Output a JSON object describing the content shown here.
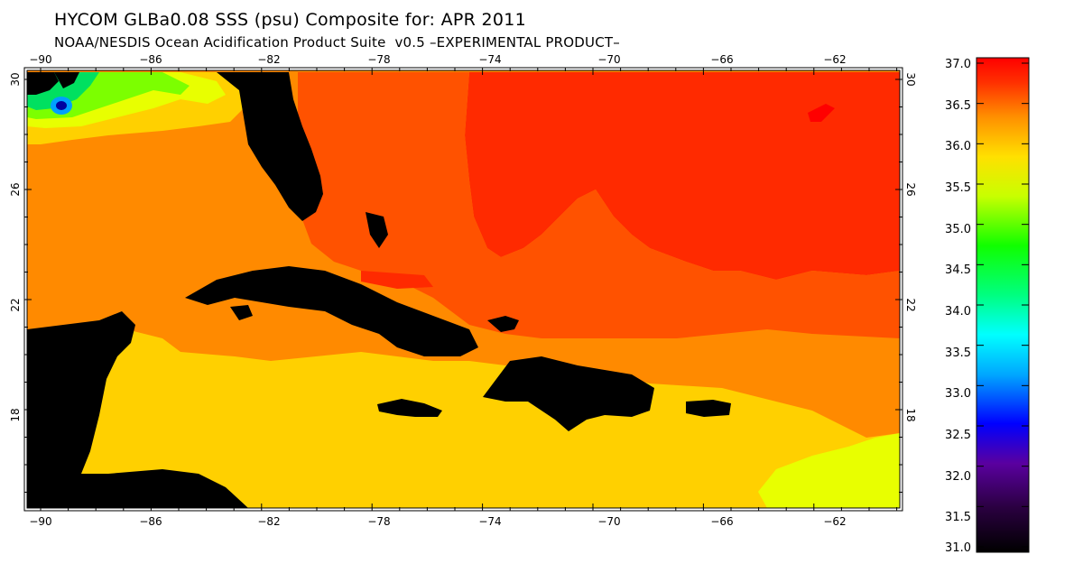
{
  "title": "HYCOM GLBa0.08 SSS (psu) Composite for: APR 2011",
  "subtitle": "NOAA/NESDIS Ocean Acidification Product Suite  v0.5 –EXPERIMENTAL PRODUCT–",
  "map": {
    "lon_ticks": [
      "−90",
      "−86",
      "−82",
      "−78",
      "−74",
      "−70",
      "−66",
      "−62"
    ],
    "lat_ticks": [
      "30",
      "26",
      "22",
      "18"
    ],
    "land_color": "#000000",
    "colors": {
      "salinity_36_5": "#ff2a00",
      "salinity_36_2": "#ff5200",
      "salinity_36_0": "#ff8a00",
      "salinity_35_6": "#ffd000",
      "salinity_35_2": "#e8ff00",
      "salinity_34_5": "#7cff00",
      "salinity_34_0": "#00e060",
      "salinity_33_0": "#00a0ff"
    }
  },
  "colorbar": {
    "ticks": [
      "37.0",
      "36.5",
      "36.0",
      "35.5",
      "35.0",
      "34.5",
      "34.0",
      "33.5",
      "33.0",
      "32.5",
      "32.0",
      "31.5",
      "31.0"
    ]
  }
}
